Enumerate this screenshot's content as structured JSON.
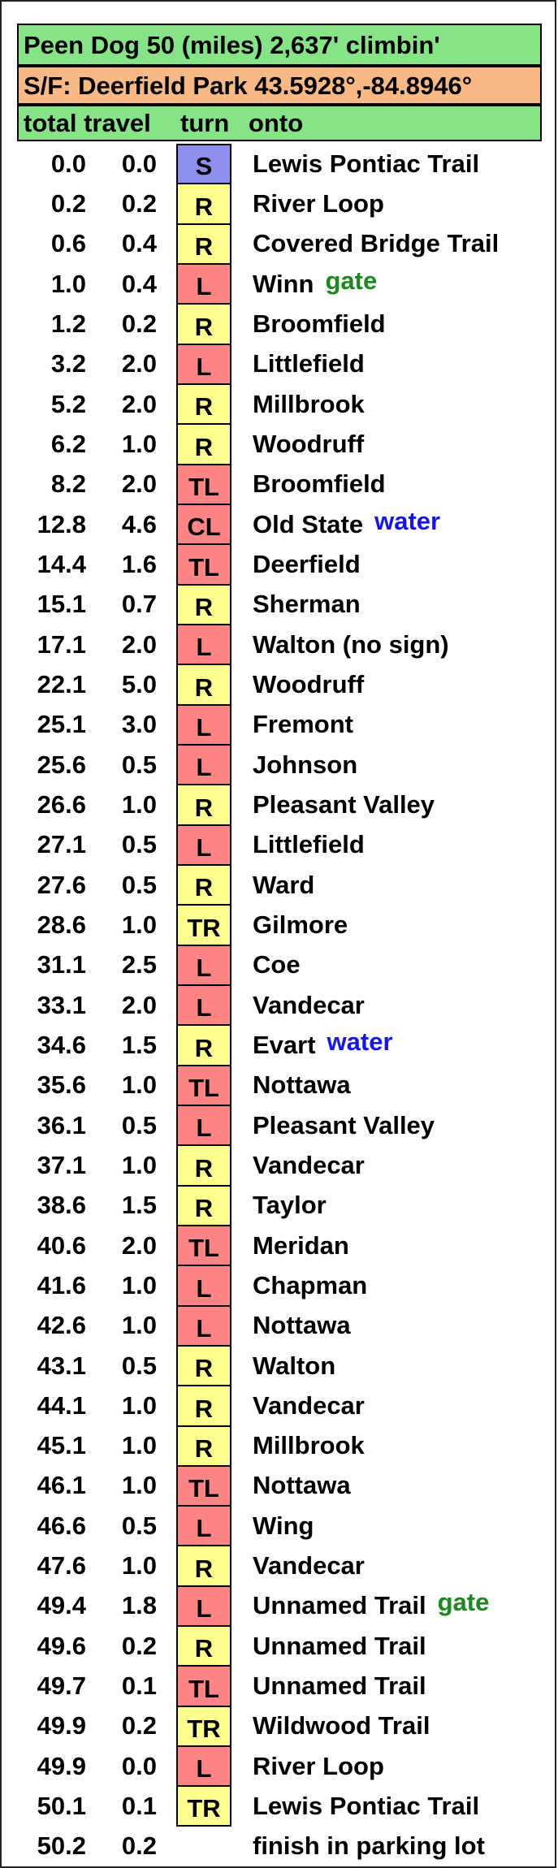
{
  "header": {
    "title": "Peen Dog 50 (miles) 2,637' climbin'",
    "start_finish": "S/F: Deerfield Park 43.5928°,-84.8946°",
    "col_total": "total",
    "col_travel": "travel",
    "col_turn": "turn",
    "col_onto": "onto"
  },
  "colors": {
    "title_bg": "#86e486",
    "start_finish_bg": "#f8b985",
    "start_turn": "#8f8ff0",
    "right_turn": "#ffff8f",
    "left_turn": "#ff8484",
    "note_gate": "#1a8a1a",
    "note_water": "#1414ee"
  },
  "cues": [
    {
      "total": "0.0",
      "travel": "0.0",
      "turn": "S",
      "onto": "Lewis Pontiac Trail",
      "note": ""
    },
    {
      "total": "0.2",
      "travel": "0.2",
      "turn": "R",
      "onto": "River Loop",
      "note": ""
    },
    {
      "total": "0.6",
      "travel": "0.4",
      "turn": "R",
      "onto": "Covered Bridge Trail",
      "note": ""
    },
    {
      "total": "1.0",
      "travel": "0.4",
      "turn": "L",
      "onto": "Winn",
      "note": "gate"
    },
    {
      "total": "1.2",
      "travel": "0.2",
      "turn": "R",
      "onto": "Broomfield",
      "note": ""
    },
    {
      "total": "3.2",
      "travel": "2.0",
      "turn": "L",
      "onto": "Littlefield",
      "note": ""
    },
    {
      "total": "5.2",
      "travel": "2.0",
      "turn": "R",
      "onto": "Millbrook",
      "note": ""
    },
    {
      "total": "6.2",
      "travel": "1.0",
      "turn": "R",
      "onto": "Woodruff",
      "note": ""
    },
    {
      "total": "8.2",
      "travel": "2.0",
      "turn": "TL",
      "onto": "Broomfield",
      "note": ""
    },
    {
      "total": "12.8",
      "travel": "4.6",
      "turn": "CL",
      "onto": "Old State",
      "note": "water"
    },
    {
      "total": "14.4",
      "travel": "1.6",
      "turn": "TL",
      "onto": "Deerfield",
      "note": ""
    },
    {
      "total": "15.1",
      "travel": "0.7",
      "turn": "R",
      "onto": "Sherman",
      "note": ""
    },
    {
      "total": "17.1",
      "travel": "2.0",
      "turn": "L",
      "onto": "Walton (no sign)",
      "note": ""
    },
    {
      "total": "22.1",
      "travel": "5.0",
      "turn": "R",
      "onto": "Woodruff",
      "note": ""
    },
    {
      "total": "25.1",
      "travel": "3.0",
      "turn": "L",
      "onto": "Fremont",
      "note": ""
    },
    {
      "total": "25.6",
      "travel": "0.5",
      "turn": "L",
      "onto": "Johnson",
      "note": ""
    },
    {
      "total": "26.6",
      "travel": "1.0",
      "turn": "R",
      "onto": "Pleasant Valley",
      "note": ""
    },
    {
      "total": "27.1",
      "travel": "0.5",
      "turn": "L",
      "onto": "Littlefield",
      "note": ""
    },
    {
      "total": "27.6",
      "travel": "0.5",
      "turn": "R",
      "onto": "Ward",
      "note": ""
    },
    {
      "total": "28.6",
      "travel": "1.0",
      "turn": "TR",
      "onto": "Gilmore",
      "note": ""
    },
    {
      "total": "31.1",
      "travel": "2.5",
      "turn": "L",
      "onto": "Coe",
      "note": ""
    },
    {
      "total": "33.1",
      "travel": "2.0",
      "turn": "L",
      "onto": "Vandecar",
      "note": ""
    },
    {
      "total": "34.6",
      "travel": "1.5",
      "turn": "R",
      "onto": "Evart",
      "note": "water"
    },
    {
      "total": "35.6",
      "travel": "1.0",
      "turn": "TL",
      "onto": "Nottawa",
      "note": ""
    },
    {
      "total": "36.1",
      "travel": "0.5",
      "turn": "L",
      "onto": "Pleasant Valley",
      "note": ""
    },
    {
      "total": "37.1",
      "travel": "1.0",
      "turn": "R",
      "onto": "Vandecar",
      "note": ""
    },
    {
      "total": "38.6",
      "travel": "1.5",
      "turn": "R",
      "onto": "Taylor",
      "note": ""
    },
    {
      "total": "40.6",
      "travel": "2.0",
      "turn": "TL",
      "onto": "Meridan",
      "note": ""
    },
    {
      "total": "41.6",
      "travel": "1.0",
      "turn": "L",
      "onto": "Chapman",
      "note": ""
    },
    {
      "total": "42.6",
      "travel": "1.0",
      "turn": "L",
      "onto": "Nottawa",
      "note": ""
    },
    {
      "total": "43.1",
      "travel": "0.5",
      "turn": "R",
      "onto": "Walton",
      "note": ""
    },
    {
      "total": "44.1",
      "travel": "1.0",
      "turn": "R",
      "onto": "Vandecar",
      "note": ""
    },
    {
      "total": "45.1",
      "travel": "1.0",
      "turn": "R",
      "onto": "Millbrook",
      "note": ""
    },
    {
      "total": "46.1",
      "travel": "1.0",
      "turn": "TL",
      "onto": "Nottawa",
      "note": ""
    },
    {
      "total": "46.6",
      "travel": "0.5",
      "turn": "L",
      "onto": "Wing",
      "note": ""
    },
    {
      "total": "47.6",
      "travel": "1.0",
      "turn": "R",
      "onto": "Vandecar",
      "note": ""
    },
    {
      "total": "49.4",
      "travel": "1.8",
      "turn": "L",
      "onto": "Unnamed Trail",
      "note": "gate"
    },
    {
      "total": "49.6",
      "travel": "0.2",
      "turn": "R",
      "onto": "Unnamed Trail",
      "note": ""
    },
    {
      "total": "49.7",
      "travel": "0.1",
      "turn": "TL",
      "onto": "Unnamed Trail",
      "note": ""
    },
    {
      "total": "49.9",
      "travel": "0.2",
      "turn": "TR",
      "onto": "Wildwood Trail",
      "note": ""
    },
    {
      "total": "49.9",
      "travel": "0.0",
      "turn": "L",
      "onto": "River Loop",
      "note": ""
    },
    {
      "total": "50.1",
      "travel": "0.1",
      "turn": "TR",
      "onto": "Lewis Pontiac Trail",
      "note": ""
    },
    {
      "total": "50.2",
      "travel": "0.2",
      "turn": "",
      "onto": "finish in parking lot",
      "note": ""
    }
  ]
}
